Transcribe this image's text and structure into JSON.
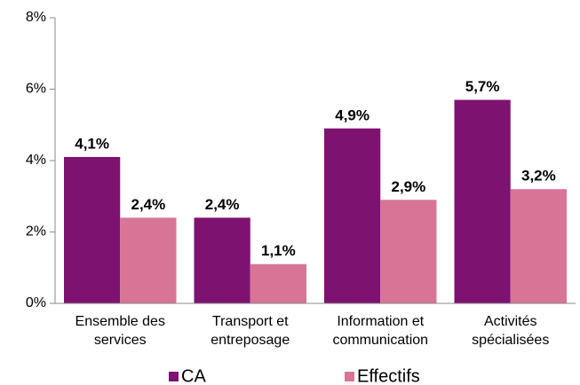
{
  "chart_data": {
    "type": "bar",
    "categories": [
      "Ensemble des services",
      "Transport et entreposage",
      "Information et communication",
      "Activités spécialisées"
    ],
    "series": [
      {
        "name": "CA",
        "color": "#7e1270",
        "values": [
          4.1,
          2.4,
          4.9,
          5.7
        ],
        "value_labels": [
          "4,1%",
          "2,4%",
          "4,9%",
          "5,7%"
        ]
      },
      {
        "name": "Effectifs",
        "color": "#d87597",
        "values": [
          2.4,
          1.1,
          2.9,
          3.2
        ],
        "value_labels": [
          "2,4%",
          "1,1%",
          "2,9%",
          "3,2%"
        ]
      }
    ],
    "ylim": [
      0,
      8
    ],
    "yticks": [
      {
        "value": 0,
        "label": "0%"
      },
      {
        "value": 2,
        "label": "2%"
      },
      {
        "value": 4,
        "label": "4%"
      },
      {
        "value": 6,
        "label": "6%"
      },
      {
        "value": 8,
        "label": "8%"
      }
    ],
    "grid": false,
    "legend": "bottom"
  }
}
